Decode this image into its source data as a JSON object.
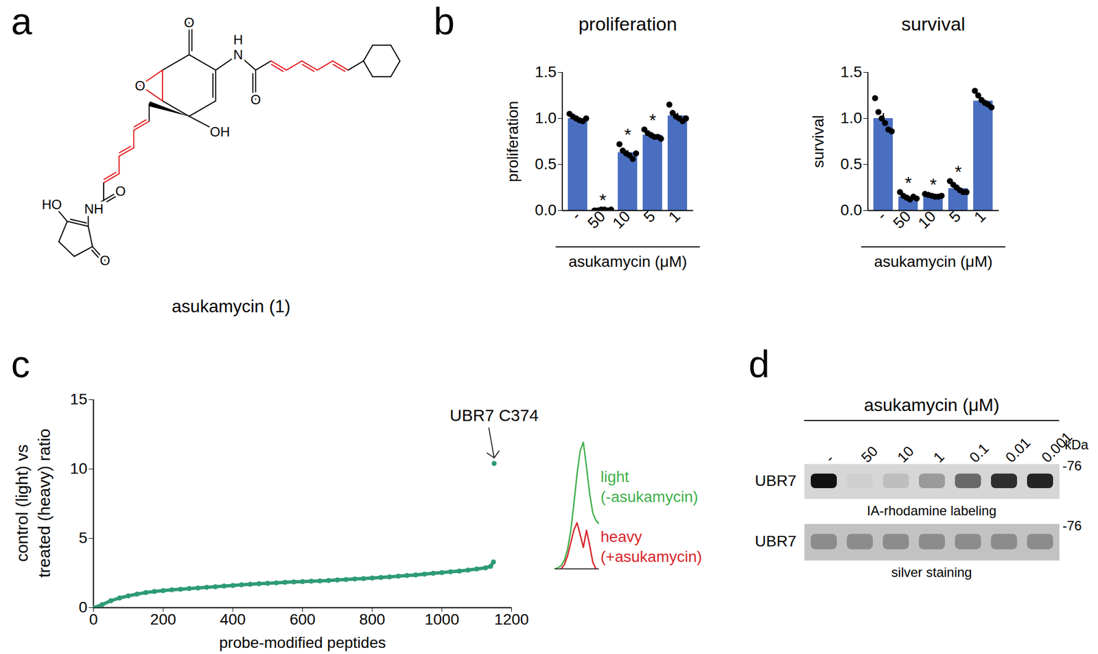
{
  "panel_labels": [
    "a",
    "b",
    "c",
    "d"
  ],
  "structure": {
    "name": "asukamycin (1)",
    "atom_labels": [
      "O",
      "O",
      "H",
      "N",
      "O",
      "OH",
      "O",
      "NH",
      "HO",
      "O"
    ]
  },
  "chart_data": [
    {
      "type": "bar",
      "title": "proliferation",
      "y_label": "proliferation",
      "x_label": "asukamycin (μM)",
      "categories": [
        "-",
        "50",
        "10",
        "5",
        "1"
      ],
      "values": [
        1.0,
        0.005,
        0.63,
        0.82,
        1.03
      ],
      "errors": [
        0.012,
        0.002,
        0.022,
        0.014,
        0.027
      ],
      "points": [
        [
          1.05,
          1.02,
          1.0,
          0.98,
          0.97,
          1.0
        ],
        [
          0.0,
          0.0,
          0.01,
          0.01,
          0.0,
          0.01
        ],
        [
          0.72,
          0.65,
          0.62,
          0.6,
          0.56,
          0.62
        ],
        [
          0.88,
          0.84,
          0.82,
          0.8,
          0.8,
          0.78
        ],
        [
          1.15,
          1.06,
          1.02,
          1.0,
          0.97,
          1.0
        ]
      ],
      "annotations": [
        {
          "category": "50",
          "text": "*"
        },
        {
          "category": "10",
          "text": "*"
        },
        {
          "category": "5",
          "text": "*"
        }
      ],
      "color": "#4a6fc1",
      "ylim": [
        0,
        1.5
      ],
      "yticks": [
        {
          "value": 0,
          "label": "0.0"
        },
        0.5,
        {
          "value": 1,
          "label": "1.0"
        },
        1.5
      ]
    },
    {
      "type": "bar",
      "title": "survival",
      "y_label": "survival",
      "x_label": "asukamycin (μM)",
      "categories": [
        "-",
        "50",
        "10",
        "5",
        "1"
      ],
      "values": [
        1.0,
        0.15,
        0.16,
        0.24,
        1.19
      ],
      "errors": [
        0.054,
        0.011,
        0.005,
        0.019,
        0.027
      ],
      "points": [
        [
          1.22,
          1.07,
          1.0,
          0.95,
          0.88,
          0.86
        ],
        [
          0.2,
          0.16,
          0.14,
          0.12,
          0.15,
          0.13
        ],
        [
          0.18,
          0.17,
          0.16,
          0.15,
          0.15,
          0.16
        ],
        [
          0.32,
          0.28,
          0.25,
          0.22,
          0.2,
          0.2
        ],
        [
          1.3,
          1.25,
          1.2,
          1.17,
          1.15,
          1.12
        ]
      ],
      "annotations": [
        {
          "category": "50",
          "text": "*"
        },
        {
          "category": "10",
          "text": "*"
        },
        {
          "category": "5",
          "text": "*"
        }
      ],
      "color": "#4a6fc1",
      "ylim": [
        0,
        1.5
      ],
      "yticks": [
        {
          "value": 0,
          "label": "0.0"
        },
        0.5,
        {
          "value": 1,
          "label": "1.0"
        },
        1.5
      ]
    },
    {
      "type": "scatter",
      "x_label": "probe-modified peptides",
      "y_label": "control (light) vs treated (heavy) ratio",
      "x": [
        0,
        25,
        50,
        75,
        100,
        125,
        150,
        175,
        200,
        225,
        250,
        275,
        300,
        325,
        350,
        375,
        400,
        425,
        450,
        475,
        500,
        525,
        550,
        575,
        600,
        625,
        650,
        675,
        700,
        725,
        750,
        775,
        800,
        825,
        850,
        875,
        900,
        925,
        950,
        975,
        1000,
        1025,
        1050,
        1075,
        1100,
        1125,
        1140,
        1148,
        1150
      ],
      "y": [
        0,
        0.22,
        0.5,
        0.7,
        0.85,
        0.98,
        1.09,
        1.17,
        1.23,
        1.29,
        1.33,
        1.38,
        1.42,
        1.47,
        1.51,
        1.56,
        1.6,
        1.65,
        1.69,
        1.73,
        1.76,
        1.79,
        1.83,
        1.86,
        1.88,
        1.91,
        1.93,
        1.96,
        2.0,
        2.03,
        2.07,
        2.1,
        2.14,
        2.18,
        2.22,
        2.27,
        2.32,
        2.36,
        2.42,
        2.48,
        2.53,
        2.59,
        2.64,
        2.71,
        2.79,
        2.87,
        2.98,
        3.3,
        10.4
      ],
      "annotations": [
        {
          "x": 1150,
          "y": 10.4,
          "text": "UBR7 C374"
        }
      ],
      "color": "#2e9a78",
      "xlim": [
        0,
        1200
      ],
      "xticks": [
        0,
        200,
        400,
        600,
        800,
        1000,
        1200
      ],
      "ylim": [
        0,
        15
      ],
      "yticks": [
        0,
        5,
        10,
        15
      ]
    },
    {
      "type": "line",
      "tick_labels": false,
      "xlim": [
        0,
        14
      ],
      "ylim": [
        0,
        12
      ],
      "x": [
        0,
        1,
        2,
        3,
        4,
        5,
        6,
        7,
        8,
        9,
        10,
        11,
        12,
        13,
        14
      ],
      "series": [
        {
          "name": "light (-asukamycin)",
          "color": "#3faf4a",
          "values": [
            0,
            0.1,
            0.3,
            0.8,
            1.8,
            3.5,
            6,
            8.8,
            11,
            11.8,
            9.5,
            7,
            5.2,
            4.5,
            4.2
          ]
        },
        {
          "name": "heavy (+asukamycin)",
          "color": "#d9242b",
          "values": [
            null,
            null,
            0,
            0.4,
            1.2,
            2.4,
            3.6,
            4.3,
            3.2,
            2,
            3.6,
            2.2,
            0.6,
            0,
            null
          ]
        }
      ]
    },
    {
      "type": "gel",
      "title": "asukamycin (μM)",
      "lanes": [
        "-",
        "50",
        "10",
        "1",
        "0.1",
        "0.01",
        "0.001"
      ],
      "unit": "kDa",
      "blots": [
        {
          "label": "UBR7",
          "caption": "IA-rhodamine labeling",
          "size_label": "-76",
          "color": "#111111",
          "band_intensity": [
            1.0,
            0.04,
            0.12,
            0.3,
            0.55,
            0.85,
            0.9
          ]
        },
        {
          "label": "UBR7",
          "caption": "silver staining",
          "size_label": "-76",
          "color": "#555555",
          "band_intensity": [
            0.5,
            0.5,
            0.5,
            0.5,
            0.5,
            0.5,
            0.5
          ]
        }
      ]
    }
  ]
}
